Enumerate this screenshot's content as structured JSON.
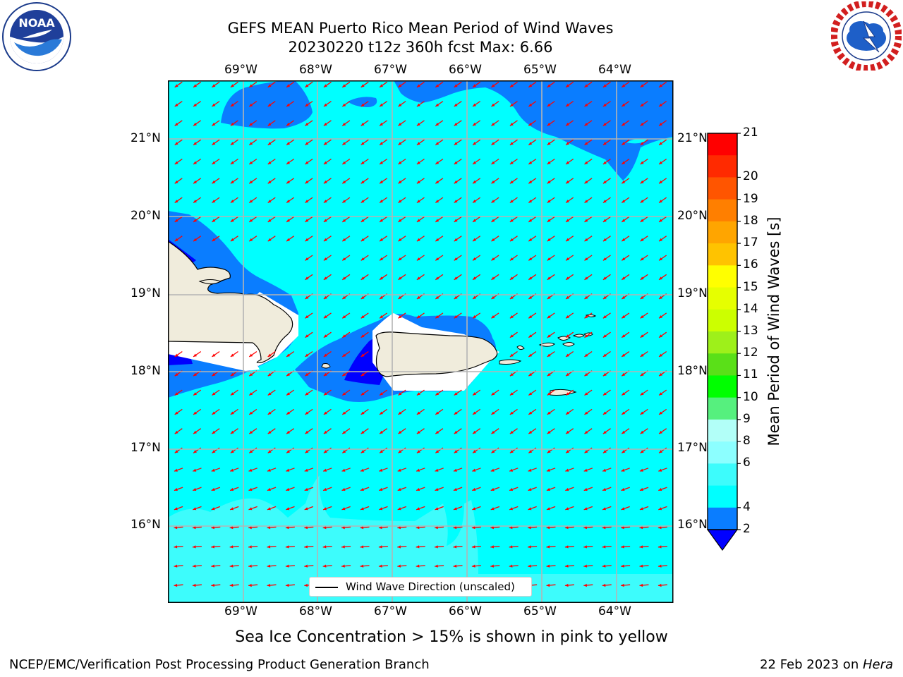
{
  "header": {
    "title_line1": "GEFS MEAN Puerto Rico Mean Period of Wind Waves",
    "title_line2": "20230220 t12z 360h fcst   Max: 6.66"
  },
  "logos": {
    "left": "noaa-logo-icon",
    "right": "national-weather-service-logo-icon"
  },
  "map": {
    "lon_labels": [
      "69°W",
      "68°W",
      "67°W",
      "66°W",
      "65°W",
      "64°W"
    ],
    "lat_labels": [
      "21°N",
      "20°N",
      "19°N",
      "18°N",
      "17°N",
      "16°N"
    ],
    "legend_label": "Wind Wave Direction (unscaled)",
    "arrow_color": "#ff0000",
    "land_color": "#f0ecdc"
  },
  "colorbar": {
    "label": "Mean Period of Wind Waves [s]",
    "ticks": [
      "2",
      "4",
      "6",
      "8",
      "9",
      "10",
      "11",
      "12",
      "13",
      "14",
      "15",
      "16",
      "17",
      "18",
      "19",
      "20",
      "21"
    ],
    "colors": [
      "#0a7dff",
      "#00ffff",
      "#3dfcfc",
      "#8cffff",
      "#b2fff8",
      "#56f07e",
      "#00ff00",
      "#5ae018",
      "#9ef01a",
      "#ccff00",
      "#e6ff00",
      "#ffff00",
      "#ffc300",
      "#ffa500",
      "#ff7f00",
      "#ff5500",
      "#ff2a00",
      "#ff0000"
    ],
    "under_color": "#0000ff"
  },
  "footer": {
    "note": "Sea Ice Concentration > 15% is shown in pink to yellow",
    "credit": "NCEP/EMC/Verification Post Processing Product Generation Branch",
    "date": "22 Feb 2023 on ",
    "host": "Hera"
  }
}
